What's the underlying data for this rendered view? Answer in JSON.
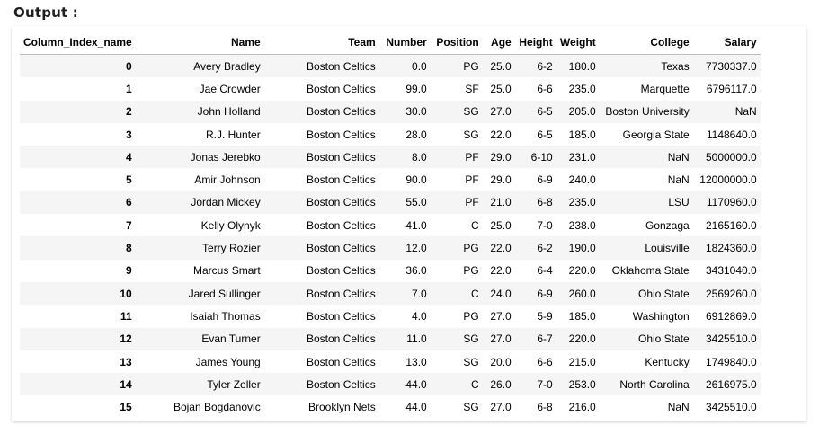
{
  "header": {
    "output_label": "Output :"
  },
  "table": {
    "columns": [
      "Column_Index_name",
      "Name",
      "Team",
      "Number",
      "Position",
      "Age",
      "Height",
      "Weight",
      "College",
      "Salary"
    ],
    "rows": [
      [
        "0",
        "Avery Bradley",
        "Boston Celtics",
        "0.0",
        "PG",
        "25.0",
        "6-2",
        "180.0",
        "Texas",
        "7730337.0"
      ],
      [
        "1",
        "Jae Crowder",
        "Boston Celtics",
        "99.0",
        "SF",
        "25.0",
        "6-6",
        "235.0",
        "Marquette",
        "6796117.0"
      ],
      [
        "2",
        "John Holland",
        "Boston Celtics",
        "30.0",
        "SG",
        "27.0",
        "6-5",
        "205.0",
        "Boston University",
        "NaN"
      ],
      [
        "3",
        "R.J. Hunter",
        "Boston Celtics",
        "28.0",
        "SG",
        "22.0",
        "6-5",
        "185.0",
        "Georgia State",
        "1148640.0"
      ],
      [
        "4",
        "Jonas Jerebko",
        "Boston Celtics",
        "8.0",
        "PF",
        "29.0",
        "6-10",
        "231.0",
        "NaN",
        "5000000.0"
      ],
      [
        "5",
        "Amir Johnson",
        "Boston Celtics",
        "90.0",
        "PF",
        "29.0",
        "6-9",
        "240.0",
        "NaN",
        "12000000.0"
      ],
      [
        "6",
        "Jordan Mickey",
        "Boston Celtics",
        "55.0",
        "PF",
        "21.0",
        "6-8",
        "235.0",
        "LSU",
        "1170960.0"
      ],
      [
        "7",
        "Kelly Olynyk",
        "Boston Celtics",
        "41.0",
        "C",
        "25.0",
        "7-0",
        "238.0",
        "Gonzaga",
        "2165160.0"
      ],
      [
        "8",
        "Terry Rozier",
        "Boston Celtics",
        "12.0",
        "PG",
        "22.0",
        "6-2",
        "190.0",
        "Louisville",
        "1824360.0"
      ],
      [
        "9",
        "Marcus Smart",
        "Boston Celtics",
        "36.0",
        "PG",
        "22.0",
        "6-4",
        "220.0",
        "Oklahoma State",
        "3431040.0"
      ],
      [
        "10",
        "Jared Sullinger",
        "Boston Celtics",
        "7.0",
        "C",
        "24.0",
        "6-9",
        "260.0",
        "Ohio State",
        "2569260.0"
      ],
      [
        "11",
        "Isaiah Thomas",
        "Boston Celtics",
        "4.0",
        "PG",
        "27.0",
        "5-9",
        "185.0",
        "Washington",
        "6912869.0"
      ],
      [
        "12",
        "Evan Turner",
        "Boston Celtics",
        "11.0",
        "SG",
        "27.0",
        "6-7",
        "220.0",
        "Ohio State",
        "3425510.0"
      ],
      [
        "13",
        "James Young",
        "Boston Celtics",
        "13.0",
        "SG",
        "20.0",
        "6-6",
        "215.0",
        "Kentucky",
        "1749840.0"
      ],
      [
        "14",
        "Tyler Zeller",
        "Boston Celtics",
        "44.0",
        "C",
        "26.0",
        "7-0",
        "253.0",
        "North Carolina",
        "2616975.0"
      ],
      [
        "15",
        "Bojan Bogdanovic",
        "Brooklyn Nets",
        "44.0",
        "SG",
        "27.0",
        "6-8",
        "216.0",
        "NaN",
        "3425510.0"
      ]
    ]
  }
}
